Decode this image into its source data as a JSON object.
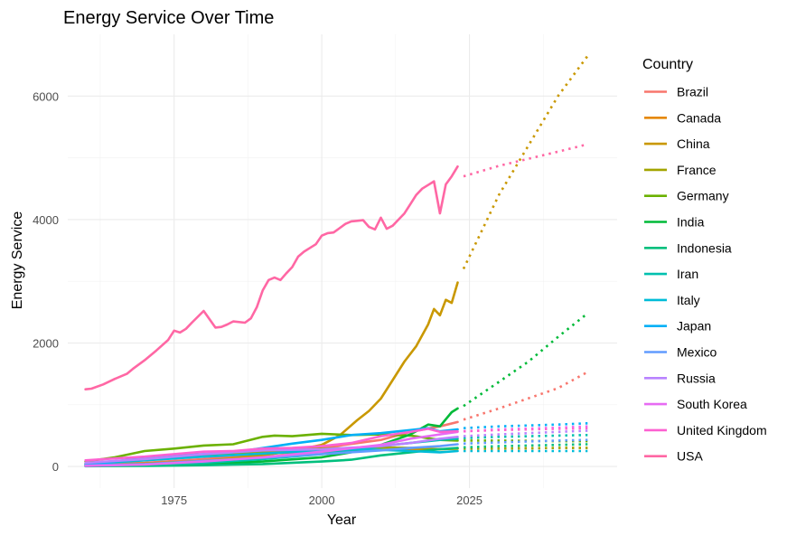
{
  "chart_data": {
    "type": "line",
    "title": "Energy Service Over Time",
    "xlabel": "Year",
    "ylabel": "Energy Service",
    "xlim": [
      1957,
      2050
    ],
    "ylim": [
      -350,
      7000
    ],
    "x_ticks": [
      1975,
      2000,
      2025
    ],
    "y_ticks": [
      0,
      2000,
      4000,
      6000
    ],
    "grid": true,
    "legend_title": "Country",
    "legend_position": "right",
    "forecast_style": "dotted",
    "series": [
      {
        "name": "Brazil",
        "color": "#F8766D",
        "actual": [
          [
            1960,
            30
          ],
          [
            1970,
            60
          ],
          [
            1980,
            120
          ],
          [
            1990,
            200
          ],
          [
            2000,
            300
          ],
          [
            2010,
            430
          ],
          [
            2015,
            560
          ],
          [
            2020,
            650
          ],
          [
            2023,
            720
          ]
        ],
        "forecast": [
          [
            2024,
            760
          ],
          [
            2030,
            940
          ],
          [
            2040,
            1270
          ],
          [
            2045,
            1530
          ]
        ]
      },
      {
        "name": "Canada",
        "color": "#E58700",
        "actual": [
          [
            1960,
            60
          ],
          [
            1970,
            110
          ],
          [
            1980,
            170
          ],
          [
            1990,
            210
          ],
          [
            2000,
            240
          ],
          [
            2010,
            270
          ],
          [
            2015,
            280
          ],
          [
            2020,
            280
          ],
          [
            2023,
            290
          ]
        ],
        "forecast": [
          [
            2024,
            290
          ],
          [
            2030,
            290
          ],
          [
            2040,
            300
          ],
          [
            2045,
            300
          ]
        ]
      },
      {
        "name": "China",
        "color": "#C99800",
        "actual": [
          [
            1960,
            20
          ],
          [
            1970,
            50
          ],
          [
            1980,
            90
          ],
          [
            1990,
            180
          ],
          [
            1995,
            250
          ],
          [
            2000,
            350
          ],
          [
            2003,
            500
          ],
          [
            2006,
            750
          ],
          [
            2008,
            900
          ],
          [
            2010,
            1100
          ],
          [
            2012,
            1400
          ],
          [
            2014,
            1700
          ],
          [
            2016,
            1950
          ],
          [
            2018,
            2300
          ],
          [
            2019,
            2550
          ],
          [
            2020,
            2450
          ],
          [
            2021,
            2700
          ],
          [
            2022,
            2650
          ],
          [
            2023,
            2980
          ]
        ],
        "forecast": [
          [
            2024,
            3200
          ],
          [
            2030,
            4400
          ],
          [
            2035,
            5200
          ],
          [
            2040,
            6000
          ],
          [
            2045,
            6650
          ]
        ]
      },
      {
        "name": "France",
        "color": "#A3A500",
        "actual": [
          [
            1960,
            50
          ],
          [
            1970,
            110
          ],
          [
            1980,
            180
          ],
          [
            1990,
            240
          ],
          [
            2000,
            290
          ],
          [
            2010,
            310
          ],
          [
            2015,
            300
          ],
          [
            2020,
            280
          ],
          [
            2023,
            290
          ]
        ],
        "forecast": [
          [
            2024,
            290
          ],
          [
            2030,
            290
          ],
          [
            2040,
            300
          ],
          [
            2045,
            300
          ]
        ]
      },
      {
        "name": "Germany",
        "color": "#6BB100",
        "actual": [
          [
            1960,
            80
          ],
          [
            1965,
            150
          ],
          [
            1970,
            250
          ],
          [
            1975,
            290
          ],
          [
            1980,
            340
          ],
          [
            1985,
            360
          ],
          [
            1990,
            480
          ],
          [
            1992,
            500
          ],
          [
            1995,
            490
          ],
          [
            2000,
            530
          ],
          [
            2005,
            510
          ],
          [
            2010,
            520
          ],
          [
            2015,
            500
          ],
          [
            2020,
            430
          ],
          [
            2023,
            420
          ]
        ],
        "forecast": [
          [
            2024,
            420
          ],
          [
            2030,
            420
          ],
          [
            2040,
            410
          ],
          [
            2045,
            410
          ]
        ]
      },
      {
        "name": "India",
        "color": "#00BA38",
        "actual": [
          [
            1960,
            10
          ],
          [
            1970,
            20
          ],
          [
            1980,
            40
          ],
          [
            1990,
            80
          ],
          [
            2000,
            150
          ],
          [
            2005,
            230
          ],
          [
            2010,
            350
          ],
          [
            2015,
            520
          ],
          [
            2018,
            680
          ],
          [
            2020,
            650
          ],
          [
            2022,
            880
          ],
          [
            2023,
            940
          ]
        ],
        "forecast": [
          [
            2024,
            980
          ],
          [
            2030,
            1370
          ],
          [
            2035,
            1700
          ],
          [
            2040,
            2100
          ],
          [
            2045,
            2480
          ]
        ]
      },
      {
        "name": "Indonesia",
        "color": "#00BF7D",
        "actual": [
          [
            1960,
            5
          ],
          [
            1970,
            10
          ],
          [
            1980,
            20
          ],
          [
            1990,
            40
          ],
          [
            2000,
            80
          ],
          [
            2005,
            110
          ],
          [
            2010,
            180
          ],
          [
            2015,
            230
          ],
          [
            2020,
            280
          ],
          [
            2023,
            300
          ]
        ],
        "forecast": [
          [
            2024,
            310
          ],
          [
            2030,
            330
          ],
          [
            2040,
            350
          ],
          [
            2045,
            360
          ]
        ]
      },
      {
        "name": "Iran",
        "color": "#00C0AF",
        "actual": [
          [
            1960,
            10
          ],
          [
            1970,
            30
          ],
          [
            1980,
            60
          ],
          [
            1990,
            120
          ],
          [
            2000,
            200
          ],
          [
            2010,
            330
          ],
          [
            2015,
            380
          ],
          [
            2020,
            430
          ],
          [
            2023,
            450
          ]
        ],
        "forecast": [
          [
            2024,
            460
          ],
          [
            2030,
            480
          ],
          [
            2040,
            500
          ],
          [
            2045,
            510
          ]
        ]
      },
      {
        "name": "Italy",
        "color": "#00BCD8",
        "actual": [
          [
            1960,
            40
          ],
          [
            1970,
            100
          ],
          [
            1980,
            160
          ],
          [
            1990,
            210
          ],
          [
            2000,
            260
          ],
          [
            2005,
            280
          ],
          [
            2010,
            270
          ],
          [
            2015,
            250
          ],
          [
            2020,
            230
          ],
          [
            2023,
            250
          ]
        ],
        "forecast": [
          [
            2024,
            250
          ],
          [
            2030,
            250
          ],
          [
            2040,
            250
          ],
          [
            2045,
            250
          ]
        ]
      },
      {
        "name": "Japan",
        "color": "#00B0F6",
        "actual": [
          [
            1960,
            40
          ],
          [
            1965,
            80
          ],
          [
            1970,
            150
          ],
          [
            1975,
            180
          ],
          [
            1980,
            200
          ],
          [
            1985,
            230
          ],
          [
            1990,
            300
          ],
          [
            1995,
            370
          ],
          [
            2000,
            430
          ],
          [
            2005,
            510
          ],
          [
            2010,
            540
          ],
          [
            2015,
            590
          ],
          [
            2018,
            620
          ],
          [
            2020,
            570
          ],
          [
            2023,
            600
          ]
        ],
        "forecast": [
          [
            2024,
            620
          ],
          [
            2030,
            650
          ],
          [
            2040,
            680
          ],
          [
            2045,
            700
          ]
        ]
      },
      {
        "name": "Mexico",
        "color": "#619CFF",
        "actual": [
          [
            1960,
            20
          ],
          [
            1970,
            40
          ],
          [
            1980,
            90
          ],
          [
            1990,
            140
          ],
          [
            2000,
            200
          ],
          [
            2010,
            260
          ],
          [
            2015,
            300
          ],
          [
            2020,
            330
          ],
          [
            2023,
            360
          ]
        ],
        "forecast": [
          [
            2024,
            370
          ],
          [
            2030,
            390
          ],
          [
            2040,
            420
          ],
          [
            2045,
            430
          ]
        ]
      },
      {
        "name": "Russia",
        "color": "#B983FF",
        "actual": [
          [
            1960,
            60
          ],
          [
            1970,
            120
          ],
          [
            1980,
            200
          ],
          [
            1990,
            260
          ],
          [
            2000,
            280
          ],
          [
            2010,
            330
          ],
          [
            2015,
            380
          ],
          [
            2020,
            450
          ],
          [
            2023,
            480
          ]
        ],
        "forecast": [
          [
            2024,
            490
          ],
          [
            2030,
            520
          ],
          [
            2040,
            560
          ],
          [
            2045,
            580
          ]
        ]
      },
      {
        "name": "South Korea",
        "color": "#E76BF3",
        "actual": [
          [
            1960,
            10
          ],
          [
            1970,
            30
          ],
          [
            1980,
            80
          ],
          [
            1990,
            150
          ],
          [
            2000,
            240
          ],
          [
            2010,
            350
          ],
          [
            2015,
            450
          ],
          [
            2020,
            520
          ],
          [
            2023,
            560
          ]
        ],
        "forecast": [
          [
            2024,
            570
          ],
          [
            2030,
            600
          ],
          [
            2040,
            630
          ],
          [
            2045,
            650
          ]
        ]
      },
      {
        "name": "United Kingdom",
        "color": "#FD61D1",
        "actual": [
          [
            1960,
            100
          ],
          [
            1965,
            130
          ],
          [
            1970,
            160
          ],
          [
            1975,
            200
          ],
          [
            1980,
            240
          ],
          [
            1985,
            250
          ],
          [
            1990,
            290
          ],
          [
            1995,
            300
          ],
          [
            2000,
            330
          ],
          [
            2005,
            380
          ],
          [
            2010,
            490
          ],
          [
            2015,
            560
          ],
          [
            2018,
            610
          ],
          [
            2020,
            560
          ],
          [
            2023,
            570
          ]
        ],
        "forecast": [
          [
            2024,
            570
          ],
          [
            2030,
            590
          ],
          [
            2040,
            610
          ],
          [
            2045,
            620
          ]
        ]
      },
      {
        "name": "USA",
        "color": "#FF67A4",
        "actual": [
          [
            1960,
            1250
          ],
          [
            1961,
            1260
          ],
          [
            1963,
            1330
          ],
          [
            1965,
            1420
          ],
          [
            1967,
            1500
          ],
          [
            1968,
            1580
          ],
          [
            1970,
            1720
          ],
          [
            1972,
            1880
          ],
          [
            1974,
            2050
          ],
          [
            1975,
            2200
          ],
          [
            1976,
            2170
          ],
          [
            1977,
            2230
          ],
          [
            1978,
            2330
          ],
          [
            1980,
            2520
          ],
          [
            1982,
            2250
          ],
          [
            1983,
            2260
          ],
          [
            1984,
            2300
          ],
          [
            1985,
            2350
          ],
          [
            1987,
            2330
          ],
          [
            1988,
            2400
          ],
          [
            1989,
            2580
          ],
          [
            1990,
            2850
          ],
          [
            1991,
            3020
          ],
          [
            1992,
            3060
          ],
          [
            1993,
            3020
          ],
          [
            1994,
            3130
          ],
          [
            1995,
            3230
          ],
          [
            1996,
            3400
          ],
          [
            1997,
            3480
          ],
          [
            1998,
            3540
          ],
          [
            1999,
            3600
          ],
          [
            2000,
            3740
          ],
          [
            2001,
            3780
          ],
          [
            2002,
            3790
          ],
          [
            2003,
            3860
          ],
          [
            2004,
            3930
          ],
          [
            2005,
            3970
          ],
          [
            2006,
            3980
          ],
          [
            2007,
            3990
          ],
          [
            2008,
            3880
          ],
          [
            2009,
            3840
          ],
          [
            2010,
            4030
          ],
          [
            2011,
            3850
          ],
          [
            2012,
            3900
          ],
          [
            2013,
            4000
          ],
          [
            2014,
            4100
          ],
          [
            2015,
            4250
          ],
          [
            2016,
            4400
          ],
          [
            2017,
            4500
          ],
          [
            2018,
            4560
          ],
          [
            2019,
            4620
          ],
          [
            2020,
            4100
          ],
          [
            2021,
            4570
          ],
          [
            2022,
            4700
          ],
          [
            2023,
            4860
          ]
        ],
        "forecast": [
          [
            2024,
            4700
          ],
          [
            2030,
            4870
          ],
          [
            2040,
            5100
          ],
          [
            2045,
            5220
          ]
        ]
      }
    ]
  }
}
